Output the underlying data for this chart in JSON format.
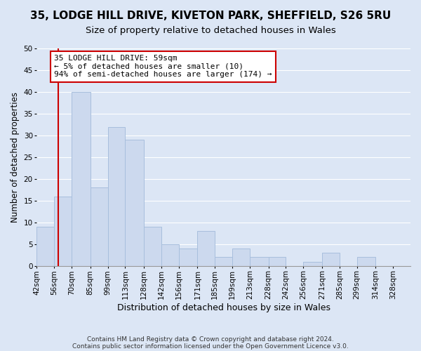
{
  "title": "35, LODGE HILL DRIVE, KIVETON PARK, SHEFFIELD, S26 5RU",
  "subtitle": "Size of property relative to detached houses in Wales",
  "xlabel": "Distribution of detached houses by size in Wales",
  "ylabel": "Number of detached properties",
  "bar_left_edges": [
    42,
    56,
    70,
    85,
    99,
    113,
    128,
    142,
    156,
    171,
    185,
    199,
    213,
    228,
    242,
    256,
    271,
    285,
    299,
    314
  ],
  "bar_widths": [
    14,
    14,
    15,
    14,
    14,
    15,
    14,
    14,
    15,
    14,
    14,
    14,
    15,
    14,
    14,
    15,
    14,
    14,
    15,
    14
  ],
  "bar_heights": [
    9,
    16,
    40,
    18,
    32,
    29,
    9,
    5,
    4,
    8,
    2,
    4,
    2,
    2,
    0,
    1,
    3,
    0,
    2,
    0
  ],
  "bar_color": "#ccd9ee",
  "bar_edgecolor": "#a8bfdd",
  "xlim": [
    42,
    342
  ],
  "ylim": [
    0,
    50
  ],
  "yticks": [
    0,
    5,
    10,
    15,
    20,
    25,
    30,
    35,
    40,
    45,
    50
  ],
  "xticklabels": [
    "42sqm",
    "56sqm",
    "70sqm",
    "85sqm",
    "99sqm",
    "113sqm",
    "128sqm",
    "142sqm",
    "156sqm",
    "171sqm",
    "185sqm",
    "199sqm",
    "213sqm",
    "228sqm",
    "242sqm",
    "256sqm",
    "271sqm",
    "285sqm",
    "299sqm",
    "314sqm",
    "328sqm"
  ],
  "xtick_positions": [
    42,
    56,
    70,
    85,
    99,
    113,
    128,
    142,
    156,
    171,
    185,
    199,
    213,
    228,
    242,
    256,
    271,
    285,
    299,
    314,
    328
  ],
  "vline_x": 59,
  "vline_color": "#cc0000",
  "annotation_line1": "35 LODGE HILL DRIVE: 59sqm",
  "annotation_line2": "← 5% of detached houses are smaller (10)",
  "annotation_line3": "94% of semi-detached houses are larger (174) →",
  "annotation_box_edgecolor": "#cc0000",
  "annotation_box_facecolor": "#ffffff",
  "footer1": "Contains HM Land Registry data © Crown copyright and database right 2024.",
  "footer2": "Contains public sector information licensed under the Open Government Licence v3.0.",
  "grid_color": "#ffffff",
  "bg_color": "#dce6f5",
  "plot_bg_color": "#dce6f5",
  "title_fontsize": 11,
  "subtitle_fontsize": 9.5,
  "xlabel_fontsize": 9,
  "ylabel_fontsize": 8.5,
  "tick_fontsize": 7.5,
  "annotation_fontsize": 8,
  "footer_fontsize": 6.5
}
